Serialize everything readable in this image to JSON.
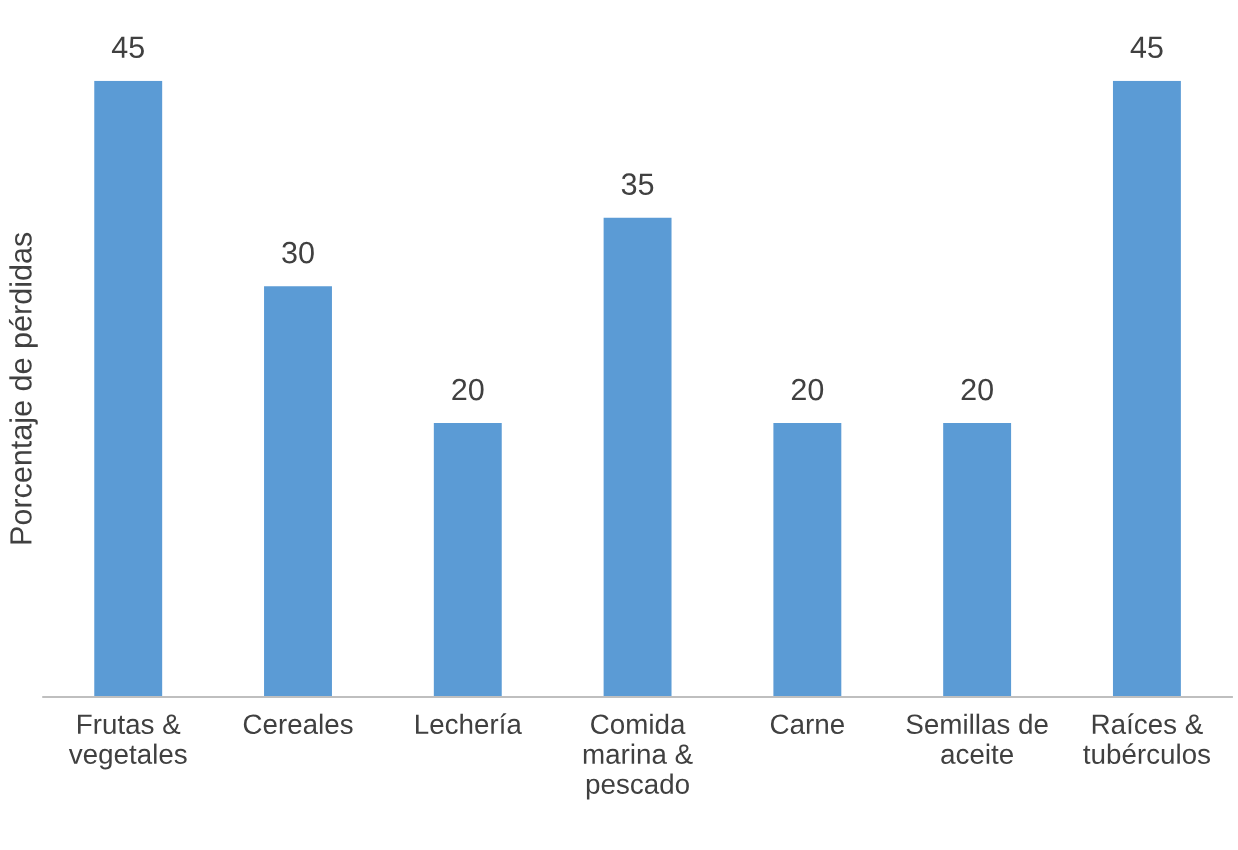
{
  "chart_data": {
    "type": "bar",
    "ylabel": "Porcentaje de pérdidas",
    "categories": [
      "Frutas &\nvegetales",
      "Cereales",
      "Lechería",
      "Comida\nmarina &\npescado",
      "Carne",
      "Semillas de\naceite",
      "Raíces &\ntubérculos"
    ],
    "values": [
      45,
      30,
      20,
      35,
      20,
      20,
      45
    ],
    "color": "#5b9bd5",
    "data_labels": true,
    "tick_labels": "x"
  }
}
